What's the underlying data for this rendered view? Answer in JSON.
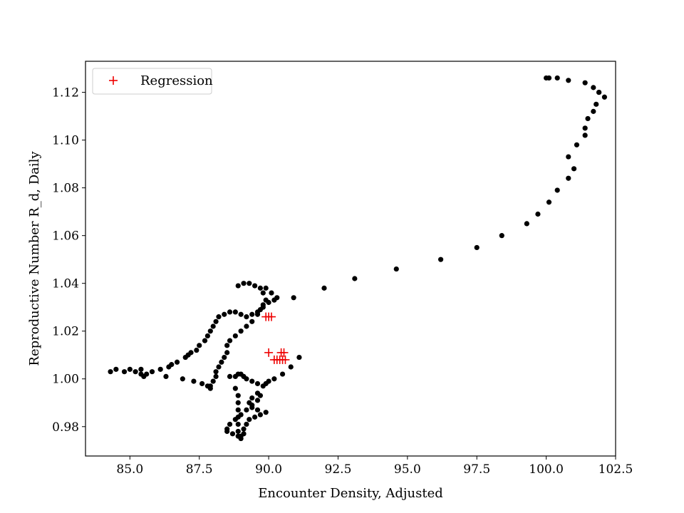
{
  "chart_data": {
    "type": "scatter",
    "title": "",
    "xlabel": "Encounter Density, Adjusted",
    "ylabel": "Reproductive Number R_d, Daily",
    "xlim": [
      83.4,
      102.5
    ],
    "ylim": [
      0.9677,
      1.133
    ],
    "xticks": [
      "85.0",
      "87.5",
      "90.0",
      "92.5",
      "95.0",
      "97.5",
      "100.0",
      "102.5"
    ],
    "yticks": [
      "0.98",
      "1.00",
      "1.02",
      "1.04",
      "1.06",
      "1.08",
      "1.10",
      "1.12"
    ],
    "grid": false,
    "legend": {
      "position": "top-left",
      "entries": [
        "Regression"
      ]
    },
    "colors": {
      "observed": "#000000",
      "regression": "#ee0000"
    },
    "series": [
      {
        "marker": "circle",
        "color": "#000000",
        "x": [
          84.3,
          84.5,
          84.8,
          85.0,
          85.2,
          85.4,
          85.5,
          85.6,
          85.8,
          86.1,
          86.4,
          86.5,
          86.7,
          87.0,
          87.1,
          87.2,
          87.4,
          87.5,
          87.7,
          87.8,
          87.9,
          88.0,
          88.1,
          88.2,
          88.4,
          88.6,
          88.8,
          89.0,
          89.2,
          89.4,
          89.6,
          89.8,
          90.0,
          90.2,
          90.3,
          90.1,
          89.9,
          85.4,
          86.3,
          86.9,
          87.3,
          87.6,
          87.8,
          87.9,
          87.9,
          88.0,
          88.1,
          88.1,
          88.2,
          88.3,
          88.4,
          88.5,
          88.5,
          88.6,
          88.8,
          89.0,
          89.2,
          89.4,
          89.6,
          89.7,
          89.8,
          89.9,
          89.8,
          89.7,
          89.5,
          89.3,
          89.1,
          88.9,
          88.6,
          88.8,
          88.9,
          89.0,
          89.1,
          89.2,
          89.4,
          89.6,
          89.8,
          89.9,
          90.0,
          90.2,
          90.5,
          90.8,
          91.1,
          88.5,
          88.7,
          88.9,
          89.0,
          89.0,
          89.1,
          89.1,
          89.2,
          89.3,
          89.5,
          89.7,
          89.9,
          89.6,
          89.4,
          89.3,
          89.4,
          89.6,
          89.7,
          89.6,
          89.4,
          89.2,
          89.0,
          88.8,
          88.6,
          88.5,
          88.8,
          88.9,
          88.9,
          88.9,
          88.9,
          88.9,
          88.9,
          90.9,
          92.0,
          93.1,
          94.6,
          96.2,
          97.5,
          98.4,
          99.3,
          99.7,
          100.1,
          100.4,
          100.8,
          100.8,
          101.0,
          101.1,
          101.4,
          101.4,
          101.5,
          101.7,
          101.8,
          101.9,
          102.1,
          101.9,
          101.7,
          101.4,
          100.8,
          100.4,
          100.1,
          100.0
        ],
        "y": [
          1.003,
          1.004,
          1.003,
          1.004,
          1.003,
          1.002,
          1.001,
          1.002,
          1.003,
          1.004,
          1.005,
          1.006,
          1.007,
          1.009,
          1.01,
          1.011,
          1.012,
          1.014,
          1.016,
          1.018,
          1.02,
          1.022,
          1.024,
          1.026,
          1.027,
          1.028,
          1.028,
          1.027,
          1.026,
          1.027,
          1.028,
          1.03,
          1.032,
          1.033,
          1.034,
          1.036,
          1.038,
          1.004,
          1.001,
          1.0,
          0.999,
          0.998,
          0.997,
          0.996,
          0.997,
          0.999,
          1.001,
          1.003,
          1.005,
          1.007,
          1.009,
          1.011,
          1.014,
          1.016,
          1.018,
          1.02,
          1.022,
          1.024,
          1.027,
          1.029,
          1.031,
          1.033,
          1.036,
          1.038,
          1.039,
          1.04,
          1.04,
          1.039,
          1.001,
          1.001,
          1.002,
          1.002,
          1.001,
          1.0,
          0.999,
          0.998,
          0.997,
          0.998,
          0.999,
          1.0,
          1.002,
          1.005,
          1.009,
          0.978,
          0.977,
          0.976,
          0.975,
          0.976,
          0.977,
          0.979,
          0.981,
          0.983,
          0.984,
          0.985,
          0.986,
          0.987,
          0.988,
          0.99,
          0.992,
          0.994,
          0.993,
          0.991,
          0.989,
          0.987,
          0.985,
          0.983,
          0.981,
          0.979,
          0.996,
          0.993,
          0.99,
          0.987,
          0.984,
          0.981,
          0.978,
          1.034,
          1.038,
          1.042,
          1.046,
          1.05,
          1.055,
          1.06,
          1.065,
          1.069,
          1.074,
          1.079,
          1.084,
          1.093,
          1.088,
          1.098,
          1.102,
          1.105,
          1.109,
          1.112,
          1.115,
          1.12,
          1.118,
          1.12,
          1.122,
          1.124,
          1.125,
          1.126,
          1.126,
          1.126
        ]
      },
      {
        "name": "Regression",
        "marker": "plus",
        "color": "#ee0000",
        "x": [
          89.9,
          90.0,
          90.1,
          90.0,
          90.2,
          90.3,
          90.4,
          90.5,
          90.6,
          90.55,
          90.45
        ],
        "y": [
          1.026,
          1.026,
          1.026,
          1.011,
          1.008,
          1.008,
          1.008,
          1.008,
          1.008,
          1.011,
          1.011
        ]
      }
    ]
  }
}
